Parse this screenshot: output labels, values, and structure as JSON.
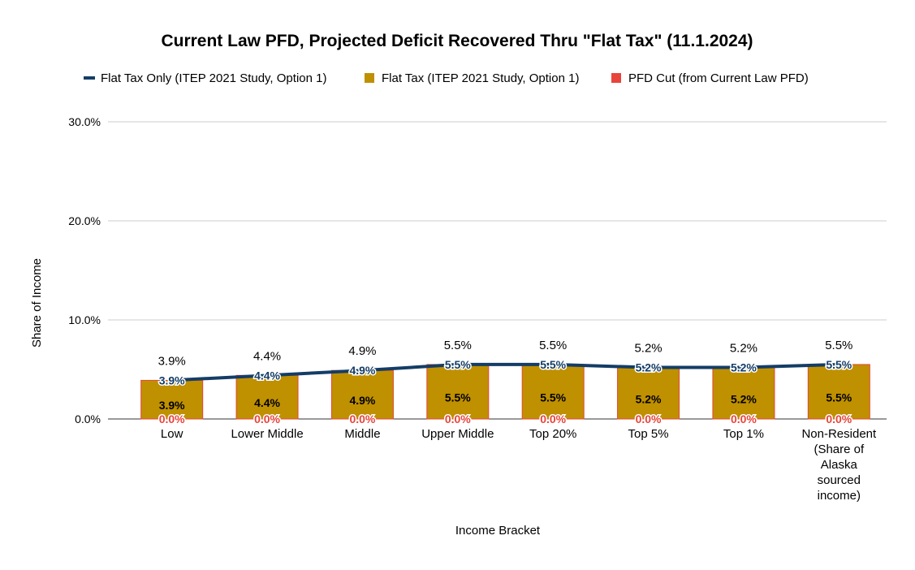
{
  "chart_data": {
    "type": "bar",
    "title": "Current Law PFD, Projected Deficit Recovered Thru \"Flat Tax\" (11.1.2024)",
    "xlabel": "Income Bracket",
    "ylabel": "Share of Income",
    "ylim": [
      0,
      30
    ],
    "yticks": [
      "0.0%",
      "10.0%",
      "20.0%",
      "30.0%"
    ],
    "ytick_values": [
      0,
      10,
      20,
      30
    ],
    "grid": true,
    "legend_position": "top",
    "categories": [
      [
        "Low"
      ],
      [
        "Lower Middle"
      ],
      [
        "Middle"
      ],
      [
        "Upper Middle"
      ],
      [
        "Top 20%"
      ],
      [
        "Top 5%"
      ],
      [
        "Top 1%"
      ],
      [
        "Non-Resident",
        "(Share of",
        "Alaska",
        "sourced",
        "income)"
      ]
    ],
    "series": [
      {
        "name": "Flat Tax Only (ITEP 2021 Study, Option 1)",
        "kind": "line",
        "color": "#143d66",
        "values": [
          3.9,
          4.4,
          4.9,
          5.5,
          5.5,
          5.2,
          5.2,
          5.5
        ],
        "labels": [
          "3.9%",
          "4.4%",
          "4.9%",
          "5.5%",
          "5.5%",
          "5.2%",
          "5.2%",
          "5.5%"
        ]
      },
      {
        "name": "Flat Tax (ITEP 2021 Study, Option 1)",
        "kind": "bar",
        "color": "#bf9000",
        "values": [
          3.9,
          4.4,
          4.9,
          5.5,
          5.5,
          5.2,
          5.2,
          5.5
        ],
        "labels": [
          "3.9%",
          "4.4%",
          "4.9%",
          "5.5%",
          "5.5%",
          "5.2%",
          "5.2%",
          "5.5%"
        ]
      },
      {
        "name": "PFD Cut (from Current Law PFD)",
        "kind": "bar",
        "color": "#e8443a",
        "values": [
          0,
          0,
          0,
          0,
          0,
          0,
          0,
          0
        ],
        "labels": [
          "0.0%",
          "0.0%",
          "0.0%",
          "0.0%",
          "0.0%",
          "0.0%",
          "0.0%",
          "0.0%"
        ]
      }
    ],
    "totals": [
      "3.9%",
      "4.4%",
      "4.9%",
      "5.5%",
      "5.5%",
      "5.2%",
      "5.2%",
      "5.5%"
    ]
  }
}
